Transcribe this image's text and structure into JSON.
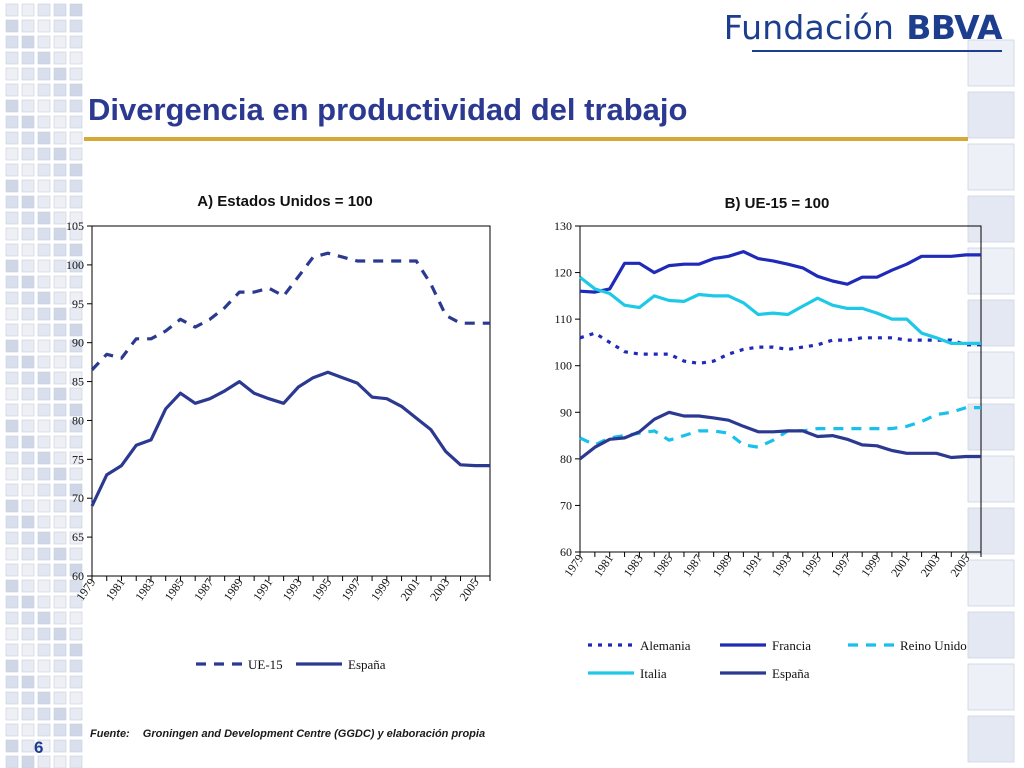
{
  "brand": {
    "name_regular": "Fundación",
    "name_bold": "BBVA"
  },
  "slide": {
    "title": "Divergencia en productividad del trabajo",
    "page_number": "6"
  },
  "source": {
    "label": "Fuente:",
    "text": "Groningen and Development Centre (GGDC) y elaboración propia"
  },
  "colors": {
    "navy": "#2b3990",
    "blue": "#1f2ab8",
    "cyan": "#1ec9e8",
    "cyan_dash": "#18c0ec"
  },
  "chart_data": [
    {
      "type": "line",
      "title": "A) Estados Unidos = 100",
      "x": [
        1979,
        1980,
        1981,
        1982,
        1983,
        1984,
        1985,
        1986,
        1987,
        1988,
        1989,
        1990,
        1991,
        1992,
        1993,
        1994,
        1995,
        1996,
        1997,
        1998,
        1999,
        2000,
        2001,
        2002,
        2003,
        2004,
        2005,
        2006
      ],
      "x_tick_labels": [
        "1979",
        "1981",
        "1983",
        "1985",
        "1987",
        "1989",
        "1991",
        "1993",
        "1995",
        "1997",
        "1999",
        "2001",
        "2003",
        "2005"
      ],
      "ylim": [
        60,
        105
      ],
      "y_ticks": [
        60,
        65,
        70,
        75,
        80,
        85,
        90,
        95,
        100,
        105
      ],
      "legend_position": "bottom",
      "series": [
        {
          "name": "UE-15",
          "style": "dashed",
          "color": "#2b3990",
          "values": [
            86.5,
            88.5,
            88.0,
            90.5,
            90.5,
            91.5,
            93.0,
            92.0,
            93.0,
            94.5,
            96.5,
            96.5,
            97.0,
            96.0,
            98.5,
            101.0,
            101.5,
            101.0,
            100.5,
            100.5,
            100.5,
            100.5,
            100.5,
            97.5,
            93.5,
            92.5,
            92.5,
            92.5
          ]
        },
        {
          "name": "España",
          "style": "solid",
          "color": "#2b3990",
          "values": [
            69.0,
            73.0,
            74.2,
            76.8,
            77.5,
            81.5,
            83.5,
            82.2,
            82.8,
            83.8,
            85.0,
            83.5,
            82.8,
            82.2,
            84.3,
            85.5,
            86.2,
            85.5,
            84.8,
            83.0,
            82.8,
            81.8,
            80.3,
            78.8,
            76.0,
            74.3,
            74.2,
            74.2
          ]
        }
      ]
    },
    {
      "type": "line",
      "title": "B) UE-15 = 100",
      "x": [
        1979,
        1980,
        1981,
        1982,
        1983,
        1984,
        1985,
        1986,
        1987,
        1988,
        1989,
        1990,
        1991,
        1992,
        1993,
        1994,
        1995,
        1996,
        1997,
        1998,
        1999,
        2000,
        2001,
        2002,
        2003,
        2004,
        2005,
        2006
      ],
      "x_tick_labels": [
        "1979",
        "1981",
        "1983",
        "1985",
        "1987",
        "1989",
        "1991",
        "1993",
        "1995",
        "1997",
        "1999",
        "2001",
        "2003",
        "2005"
      ],
      "ylim": [
        60,
        130
      ],
      "y_ticks": [
        60,
        70,
        80,
        90,
        100,
        110,
        120,
        130
      ],
      "legend_position": "bottom",
      "series": [
        {
          "name": "Alemania",
          "style": "dotted",
          "color": "#1f2ab8",
          "values": [
            106.0,
            107.0,
            105.0,
            103.0,
            102.5,
            102.5,
            102.5,
            101.0,
            100.5,
            101.0,
            102.5,
            103.5,
            104.0,
            104.0,
            103.5,
            104.0,
            104.5,
            105.5,
            105.5,
            106.0,
            106.0,
            106.0,
            105.5,
            105.5,
            105.5,
            105.5,
            104.5,
            104.5
          ]
        },
        {
          "name": "Francia",
          "style": "solid",
          "color": "#1f2ab8",
          "values": [
            116.0,
            115.8,
            116.5,
            122.0,
            122.0,
            120.0,
            121.5,
            121.8,
            121.8,
            123.0,
            123.5,
            124.5,
            123.0,
            122.5,
            121.8,
            121.0,
            119.2,
            118.2,
            117.5,
            119.0,
            119.0,
            120.5,
            121.8,
            123.5,
            123.5,
            123.5,
            123.8,
            123.8
          ]
        },
        {
          "name": "Reino Unido",
          "style": "dashed",
          "color": "#18c0ec",
          "values": [
            84.5,
            83.0,
            84.5,
            85.0,
            85.5,
            86.0,
            84.0,
            85.0,
            86.0,
            86.0,
            85.5,
            83.0,
            82.5,
            84.0,
            86.0,
            86.0,
            86.5,
            86.5,
            86.5,
            86.5,
            86.5,
            86.5,
            87.0,
            88.0,
            89.5,
            90.0,
            91.0,
            91.0
          ]
        },
        {
          "name": "Italia",
          "style": "solid",
          "color": "#1ec9e8",
          "values": [
            119.0,
            116.5,
            115.5,
            113.0,
            112.5,
            115.0,
            114.0,
            113.8,
            115.3,
            115.0,
            115.0,
            113.5,
            111.0,
            111.3,
            111.0,
            112.8,
            114.5,
            113.0,
            112.3,
            112.3,
            111.3,
            110.0,
            110.0,
            107.0,
            106.0,
            104.8,
            104.8,
            104.8
          ]
        },
        {
          "name": "España",
          "style": "solid",
          "color": "#2b3990",
          "values": [
            80.0,
            82.5,
            84.2,
            84.5,
            85.8,
            88.5,
            90.0,
            89.2,
            89.2,
            88.8,
            88.3,
            87.0,
            85.8,
            85.8,
            86.0,
            86.0,
            84.8,
            85.0,
            84.2,
            83.0,
            82.8,
            81.8,
            81.2,
            81.2,
            81.2,
            80.3,
            80.5,
            80.5
          ]
        }
      ]
    }
  ]
}
